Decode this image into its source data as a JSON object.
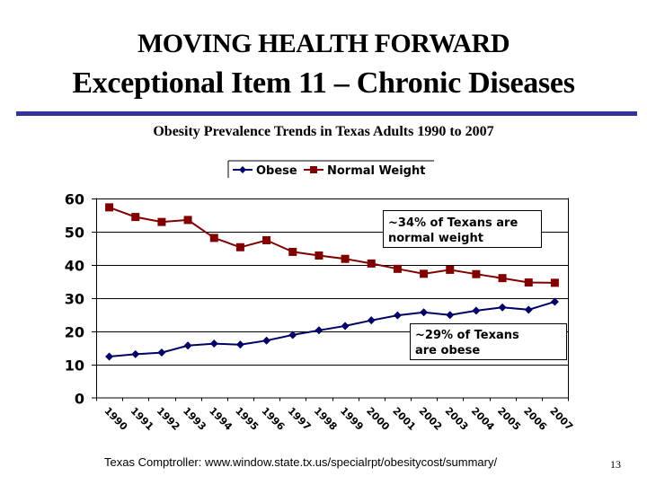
{
  "slide": {
    "heading": "MOVING HEALTH FORWARD",
    "title": "Exceptional Item 11 – Chronic Diseases",
    "footer_source": "Texas Comptroller: www.window.state.tx.us/specialrpt/obesitycost/summary/",
    "page_number": "13",
    "rule_color": "#333399"
  },
  "chart_data": {
    "type": "line",
    "title": "Obesity Prevalence Trends in Texas Adults 1990 to 2007",
    "xlabel": "",
    "ylabel": "",
    "categories": [
      "1990",
      "1991",
      "1992",
      "1993",
      "1994",
      "1995",
      "1996",
      "1997",
      "1998",
      "1999",
      "2000",
      "2001",
      "2002",
      "2003",
      "2004",
      "2005",
      "2006",
      "2007"
    ],
    "ylim": [
      0,
      60
    ],
    "yticks": [
      "0",
      "10",
      "20",
      "30",
      "40",
      "50",
      "60"
    ],
    "grid": true,
    "legend_position": "top",
    "series": [
      {
        "name": "Obese",
        "color": "#000066",
        "marker": "diamond",
        "values": [
          12.3,
          13.0,
          13.5,
          15.6,
          16.2,
          15.9,
          17.1,
          18.8,
          20.2,
          21.5,
          23.2,
          24.7,
          25.6,
          24.8,
          26.1,
          27.1,
          26.4,
          28.8
        ]
      },
      {
        "name": "Normal Weight",
        "color": "#800000",
        "marker": "square",
        "values": [
          57.2,
          54.3,
          52.8,
          53.4,
          48.0,
          45.2,
          47.3,
          43.8,
          42.7,
          41.7,
          40.3,
          38.7,
          37.2,
          38.4,
          37.1,
          35.9,
          34.6,
          34.5
        ]
      }
    ],
    "annotations": [
      {
        "name": "normal-weight-note",
        "lines": [
          "~34% of Texans are",
          "normal weight"
        ]
      },
      {
        "name": "obese-note",
        "lines": [
          "~29% of Texans",
          "are obese"
        ]
      }
    ]
  }
}
